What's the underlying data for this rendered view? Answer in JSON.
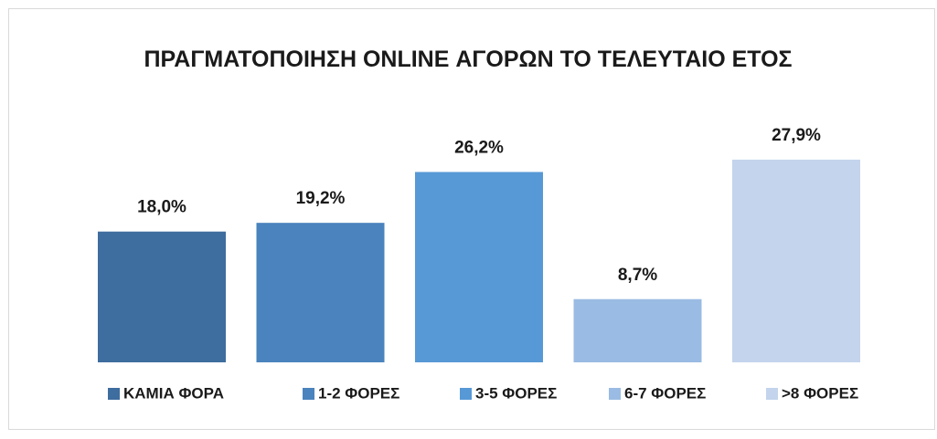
{
  "chart_data": {
    "type": "bar",
    "title": "ΠΡΑΓΜΑΤΟΠΟΙΗΣΗ ONLINE ΑΓΟΡΩΝ ΤΟ ΤΕΛΕΥΤΑΙΟ ΕΤΟΣ",
    "categories": [
      null
    ],
    "series": [
      {
        "name": "ΚΑΜΙΑ ΦΟΡΑ",
        "color": "#3e6d9f",
        "values": [
          18.0
        ],
        "value_labels": [
          "18,0%"
        ]
      },
      {
        "name": "1-2 ΦΟΡΕΣ",
        "color": "#4a83bd",
        "values": [
          19.2
        ],
        "value_labels": [
          "19,2%"
        ]
      },
      {
        "name": "3-5 ΦΟΡΕΣ",
        "color": "#5799d6",
        "values": [
          26.2
        ],
        "value_labels": [
          "26,2%"
        ]
      },
      {
        "name": "6-7 ΦΟΡΕΣ",
        "color": "#9abbe3",
        "values": [
          8.7
        ],
        "value_labels": [
          "8,7%"
        ]
      },
      {
        "name": ">8 ΦΟΡΕΣ",
        "color": "#c3d4ec",
        "values": [
          27.9
        ],
        "value_labels": [
          "27,9%"
        ]
      }
    ],
    "legend": "bottom"
  }
}
